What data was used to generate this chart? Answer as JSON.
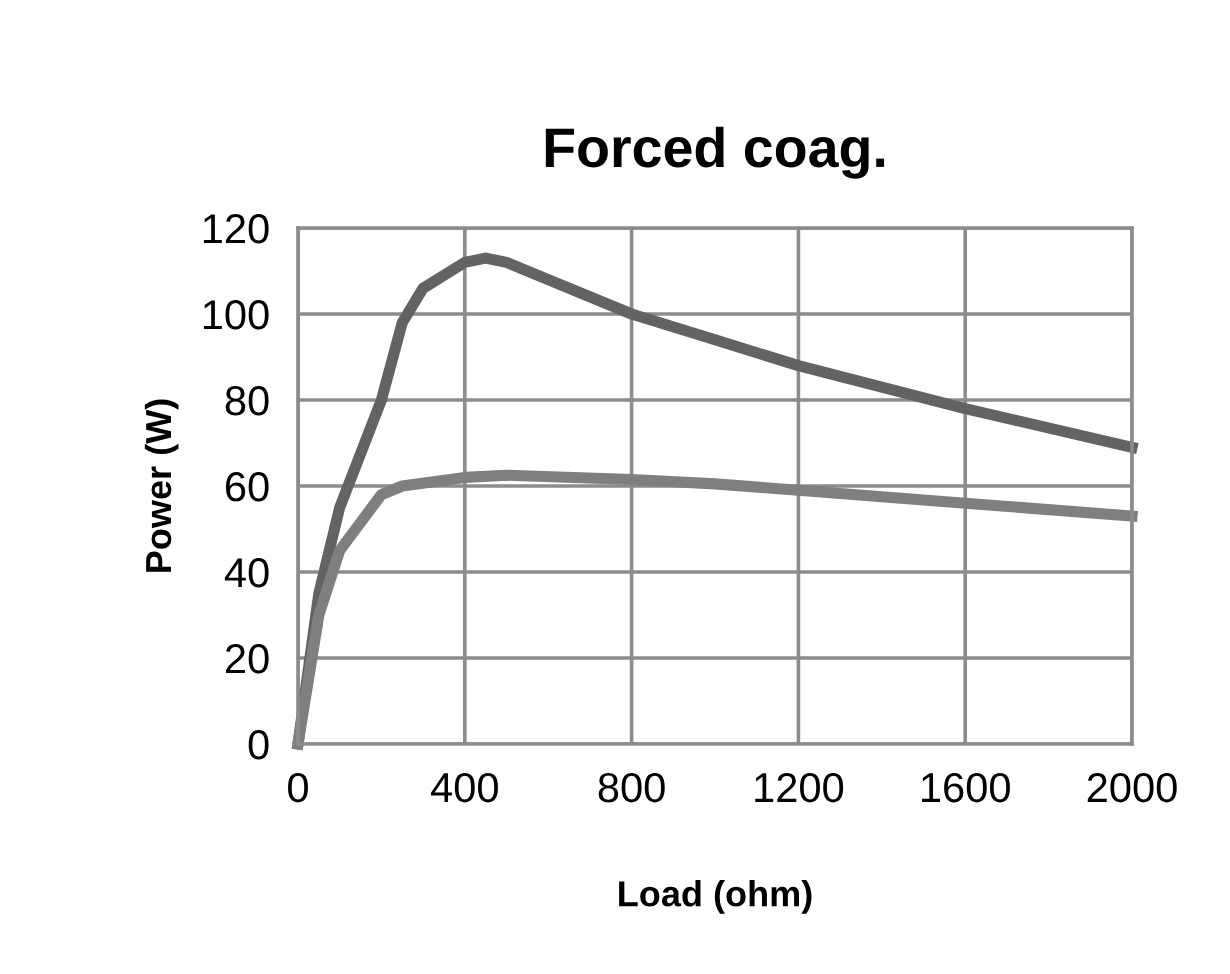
{
  "chart_data": {
    "type": "line",
    "title": "Forced coag.",
    "xlabel": "Load (ohm)",
    "ylabel": "Power (W)",
    "series": [
      {
        "color": "#636363",
        "x": [
          0,
          50,
          100,
          200,
          250,
          300,
          400,
          450,
          500,
          600,
          800,
          1000,
          1200,
          1600,
          2000
        ],
        "values": [
          0,
          35,
          55,
          80,
          98,
          106,
          112,
          113,
          112,
          108,
          100,
          94,
          88,
          78,
          69
        ]
      },
      {
        "color": "#7f7f7f",
        "x": [
          0,
          50,
          100,
          200,
          250,
          400,
          500,
          800,
          1000,
          1200,
          1600,
          2000
        ],
        "values": [
          0,
          30,
          45,
          58,
          60,
          62,
          62.5,
          61.5,
          60.5,
          59,
          56,
          53
        ]
      }
    ],
    "xlim": [
      0,
      2000
    ],
    "xticks": [
      0,
      400,
      800,
      1200,
      1600,
      2000
    ],
    "ylim": [
      0,
      120
    ],
    "yticks": [
      0,
      20,
      40,
      60,
      80,
      100,
      120
    ],
    "grid": true,
    "legend": false,
    "marker": "none",
    "line_style": "solid"
  }
}
